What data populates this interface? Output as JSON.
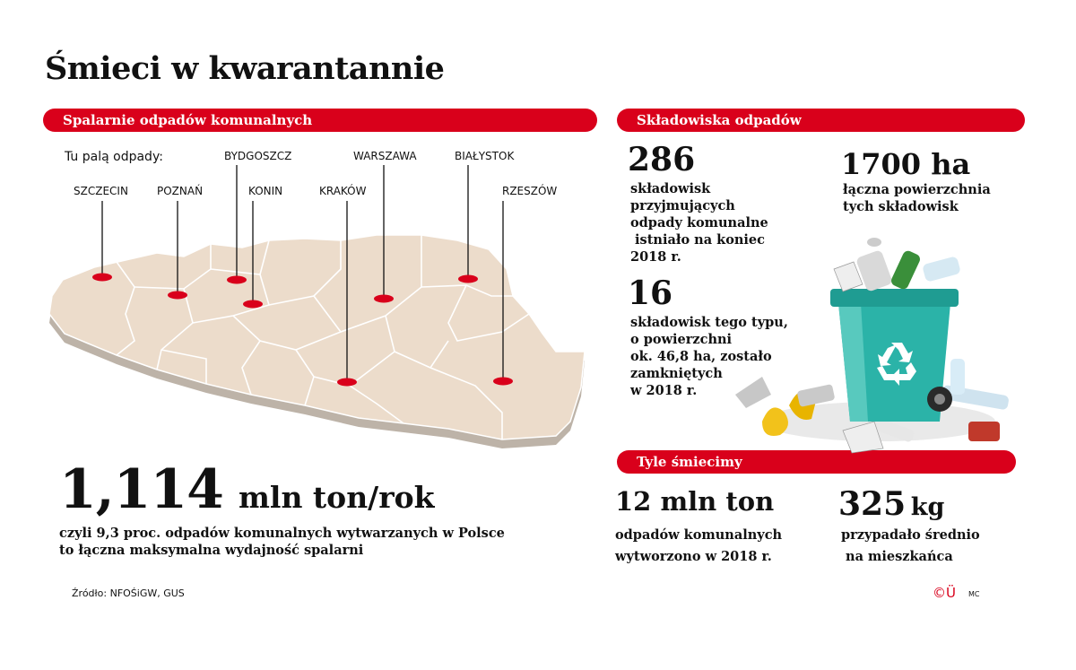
{
  "title": "Śmieci w kwarantannie",
  "sections": {
    "incinerators": "Spalarnie odpadów komunalnych",
    "landfills": "Składowiska odpadów",
    "waste": "Tyle śmiecimy"
  },
  "map": {
    "intro": "Tu palą odpady:",
    "cities": [
      "SZCZECIN",
      "POZNAŃ",
      "BYDGOSZCZ",
      "KONIN",
      "KRAKÓW",
      "WARSZAWA",
      "BIAŁYSTOK",
      "RZESZÓW"
    ]
  },
  "capacity": {
    "number": "1,114",
    "unit": "mln ton/rok",
    "line1": "czyli 9,3 proc. odpadów komunalnych wytwarzanych w Polsce",
    "line2": "to łączna maksymalna wydajność spalarni"
  },
  "landfill_stats": {
    "count_number": "286",
    "count_lines": [
      "składowisk",
      "przyjmujących",
      "odpady komunalne",
      " istniało na koniec",
      "2018 r."
    ],
    "area_number": "1700 ha",
    "area_lines": [
      "łączna powierzchnia",
      "tych składowisk"
    ],
    "closed_number": "16",
    "closed_lines": [
      "składowisk tego typu,",
      "o powierzchni",
      "ok. 46,8 ha, zostało",
      "zamkniętych",
      "w 2018 r."
    ]
  },
  "waste_stats": {
    "total_number": "12 mln ton",
    "total_lines": [
      "odpadów komunalnych",
      "wytworzono w 2018 r."
    ],
    "per_capita_number": "325",
    "per_capita_unit": "kg",
    "per_capita_lines": [
      "przypadało średnio",
      " na mieszkańca"
    ]
  },
  "source": "Źródło: NFOŚiGW, GUS",
  "logo": "©Ü",
  "credit": "MC",
  "colors": {
    "accent": "#d9001b",
    "map_fill": "#ecdccb",
    "bin": "#2bb3a8"
  },
  "icons": {
    "bin": "recycle-bin-icon",
    "recycle": "recycle-symbol-icon"
  }
}
